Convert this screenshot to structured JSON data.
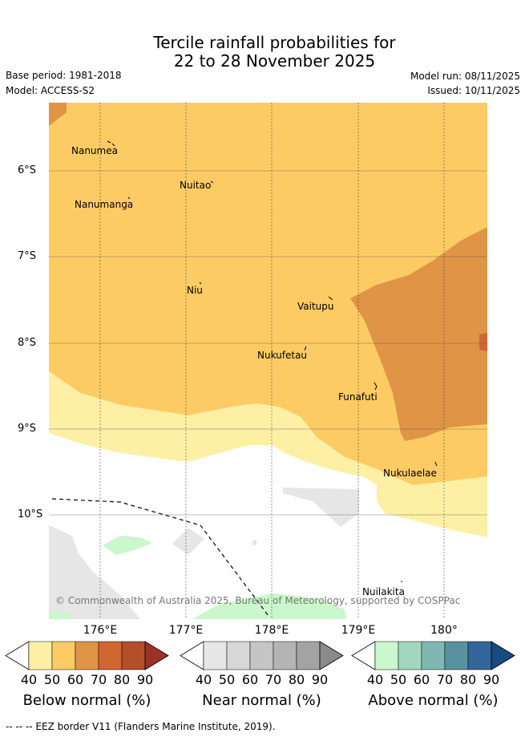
{
  "header": {
    "title_line1": "Tercile rainfall probabilities for",
    "title_line2": "22 to 28 November 2025",
    "base_period": "Base period: 1981-2018",
    "model": "Model: ACCESS-S2",
    "model_run": "Model run: 08/11/2025",
    "issued": "Issued: 10/11/2025"
  },
  "map": {
    "lat_labels": [
      "6°S",
      "7°S",
      "8°S",
      "9°S",
      "10°S"
    ],
    "lon_labels": [
      "176°E",
      "177°E",
      "178°E",
      "179°E",
      "180°"
    ],
    "places": [
      "Nanumea",
      "Nuitao",
      "Nanumanga",
      "Niu",
      "Vaitupu",
      "Nukufetau",
      "Funafuti",
      "Nukulaelae",
      "Nuilakita"
    ],
    "copyright": "© Commonwealth of Australia 2025, Bureau of Meteorology, supported by COSPPac"
  },
  "legend": {
    "ticks": [
      "40",
      "50",
      "60",
      "70",
      "80",
      "90"
    ],
    "bars": [
      {
        "title": "Below normal (%)",
        "colors": [
          "#fdf0a5",
          "#fdcb64",
          "#e09446",
          "#d06733",
          "#b34f2a",
          "#9c3226"
        ]
      },
      {
        "title": "Near normal (%)",
        "colors": [
          "#e6e6e6",
          "#d7d7d7",
          "#c5c5c5",
          "#b4b4b4",
          "#a3a3a3",
          "#8a8a8a"
        ]
      },
      {
        "title": "Above normal (%)",
        "colors": [
          "#caf7cb",
          "#a3d6be",
          "#80b7b2",
          "#5a91a0",
          "#33669b",
          "#174b82"
        ]
      }
    ]
  },
  "footer": {
    "eez_note": "-- -- -- EEZ border V11 (Flanders Marine Institute, 2019)."
  }
}
